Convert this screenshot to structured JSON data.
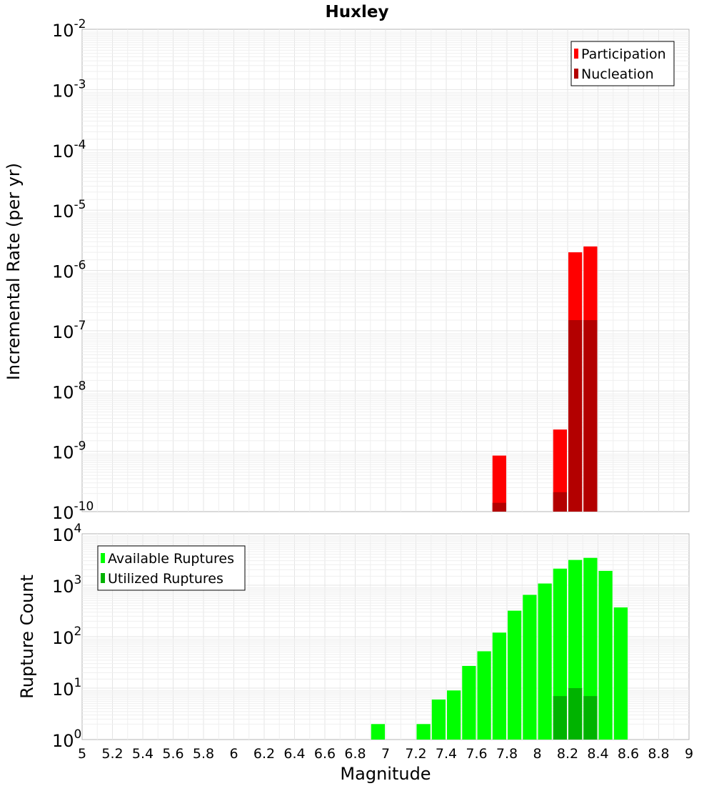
{
  "chart_data": [
    {
      "type": "bar",
      "title": "Huxley",
      "xlabel": "",
      "ylabel": "Incremental Rate (per yr)",
      "yscale": "log",
      "ylim_exp": [
        -10,
        -2
      ],
      "xlim": [
        5,
        9
      ],
      "bin_width": 0.1,
      "legend_position": "top-right",
      "grid": true,
      "series": [
        {
          "name": "Participation",
          "color": "#ff0000",
          "x": [
            7.75,
            8.15,
            8.25,
            8.35
          ],
          "values": [
            8.5e-10,
            2.3e-09,
            2e-06,
            2.5e-06
          ]
        },
        {
          "name": "Nucleation",
          "color": "#b30000",
          "x": [
            7.75,
            8.15,
            8.25,
            8.35
          ],
          "values": [
            1.4e-10,
            2.1e-10,
            1.5e-07,
            1.5e-07
          ]
        }
      ]
    },
    {
      "type": "bar",
      "title": "",
      "xlabel": "Magnitude",
      "ylabel": "Rupture Count",
      "yscale": "log",
      "ylim_exp": [
        0,
        4
      ],
      "xlim": [
        5,
        9
      ],
      "bin_width": 0.1,
      "legend_position": "top-left",
      "grid": true,
      "x_ticks": [
        "5",
        "5.2",
        "5.4",
        "5.6",
        "5.8",
        "6",
        "6.2",
        "6.4",
        "6.6",
        "6.8",
        "7",
        "7.2",
        "7.4",
        "7.6",
        "7.8",
        "8",
        "8.2",
        "8.4",
        "8.6",
        "8.8",
        "9"
      ],
      "series": [
        {
          "name": "Available Ruptures",
          "color": "#00ff00",
          "x": [
            6.95,
            7.15,
            7.25,
            7.35,
            7.45,
            7.55,
            7.65,
            7.75,
            7.85,
            7.95,
            8.05,
            8.15,
            8.25,
            8.35,
            8.45,
            8.55
          ],
          "values": [
            2,
            1,
            2,
            6,
            9,
            27,
            52,
            120,
            320,
            650,
            1080,
            2100,
            3100,
            3400,
            1900,
            370
          ]
        },
        {
          "name": "Utilized Ruptures",
          "color": "#00b300",
          "x": [
            7.75,
            8.15,
            8.25,
            8.35
          ],
          "values": [
            1,
            7,
            10,
            7
          ]
        }
      ]
    }
  ]
}
